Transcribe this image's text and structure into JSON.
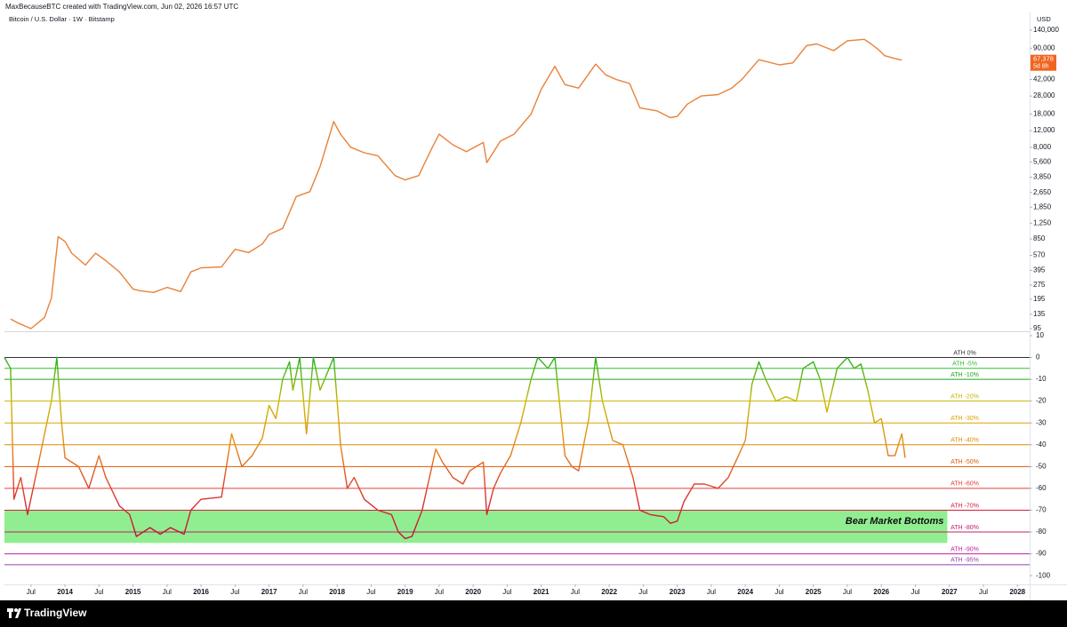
{
  "header": {
    "attribution": "MaxBecauseBTC created with TradingView.com, Jun 02, 2026 16:57 UTC"
  },
  "chart_data": [
    {
      "type": "line",
      "title": "Bitcoin / U.S. Dollar · 1W · Bitstamp",
      "currency": "USD",
      "log_scale": true,
      "xlim": [
        2013.11,
        2028.18
      ],
      "ylim": [
        91,
        216000
      ],
      "yticks": [
        {
          "value": 140000,
          "label": "140,000"
        },
        {
          "value": 90000,
          "label": "90,000"
        },
        {
          "value": 42000,
          "label": "42,000"
        },
        {
          "value": 28000,
          "label": "28,000"
        },
        {
          "value": 18000,
          "label": "18,000"
        },
        {
          "value": 12000,
          "label": "12,000"
        },
        {
          "value": 8000,
          "label": "8,000"
        },
        {
          "value": 5600,
          "label": "5,600"
        },
        {
          "value": 3850,
          "label": "3,850"
        },
        {
          "value": 2650,
          "label": "2,650"
        },
        {
          "value": 1850,
          "label": "1,850"
        },
        {
          "value": 1250,
          "label": "1,250"
        },
        850,
        570,
        395,
        275,
        195,
        135,
        95
      ],
      "last_price": {
        "value": 67378,
        "label": "67,378",
        "countdown": "5d 8h",
        "color": "#f0651e"
      },
      "series": [
        {
          "color": "#e8823a",
          "x": [
            2013.2,
            2013.3,
            2013.5,
            2013.7,
            2013.8,
            2013.9,
            2014.0,
            2014.1,
            2014.3,
            2014.45,
            2014.6,
            2014.8,
            2015.0,
            2015.1,
            2015.3,
            2015.5,
            2015.7,
            2015.85,
            2016.0,
            2016.3,
            2016.5,
            2016.7,
            2016.9,
            2017.0,
            2017.2,
            2017.4,
            2017.6,
            2017.75,
            2017.95,
            2018.05,
            2018.2,
            2018.4,
            2018.6,
            2018.85,
            2019.0,
            2019.2,
            2019.4,
            2019.5,
            2019.7,
            2019.9,
            2020.15,
            2020.2,
            2020.4,
            2020.6,
            2020.85,
            2021.0,
            2021.2,
            2021.35,
            2021.55,
            2021.8,
            2021.95,
            2022.1,
            2022.3,
            2022.45,
            2022.7,
            2022.9,
            2023.0,
            2023.15,
            2023.35,
            2023.6,
            2023.8,
            2023.95,
            2024.2,
            2024.5,
            2024.7,
            2024.9,
            2025.05,
            2025.3,
            2025.5,
            2025.75,
            2025.85,
            2025.95,
            2026.05,
            2026.2,
            2026.3
          ],
          "values": [
            120,
            110,
            95,
            125,
            200,
            900,
            800,
            600,
            450,
            600,
            500,
            380,
            250,
            240,
            230,
            260,
            235,
            380,
            420,
            430,
            660,
            610,
            750,
            950,
            1100,
            2400,
            2700,
            5000,
            15000,
            11000,
            8000,
            7000,
            6500,
            4000,
            3600,
            4000,
            8000,
            11000,
            8500,
            7200,
            9000,
            5500,
            9300,
            11000,
            18000,
            33000,
            58000,
            37000,
            34000,
            61000,
            47000,
            42000,
            38000,
            21000,
            19500,
            16500,
            17000,
            23000,
            28000,
            29000,
            34000,
            42000,
            68000,
            60000,
            63000,
            96000,
            100000,
            85000,
            108000,
            112000,
            100000,
            88000,
            75000,
            70000,
            67378
          ]
        }
      ]
    },
    {
      "type": "line",
      "xlim": [
        2013.11,
        2028.18
      ],
      "ylim": [
        -104,
        11.6
      ],
      "yticks": [
        10,
        0,
        -10,
        -20,
        -30,
        -40,
        -50,
        -60,
        -70,
        -80,
        -90,
        -100
      ],
      "xticks": [
        {
          "value": 2013.5,
          "label": "Jul"
        },
        2014,
        {
          "value": 2014.5,
          "label": "Jul"
        },
        2015,
        {
          "value": 2015.5,
          "label": "Jul"
        },
        2016,
        {
          "value": 2016.5,
          "label": "Jul"
        },
        2017,
        {
          "value": 2017.5,
          "label": "Jul"
        },
        2018,
        {
          "value": 2018.5,
          "label": "Jul"
        },
        2019,
        {
          "value": 2019.5,
          "label": "Jul"
        },
        2020,
        {
          "value": 2020.5,
          "label": "Jul"
        },
        2021,
        {
          "value": 2021.5,
          "label": "Jul"
        },
        2022,
        {
          "value": 2022.5,
          "label": "Jul"
        },
        2023,
        {
          "value": 2023.5,
          "label": "Jul"
        },
        2024,
        {
          "value": 2024.5,
          "label": "Jul"
        },
        2025,
        {
          "value": 2025.5,
          "label": "Jul"
        },
        2026,
        {
          "value": 2026.5,
          "label": "Jul"
        },
        2027,
        {
          "value": 2027.5,
          "label": "Jul"
        },
        2028
      ],
      "levels": [
        {
          "value": 0,
          "label": "ATH 0%",
          "color": "#333333"
        },
        {
          "value": -5,
          "label": "ATH -5%",
          "color": "#2fbf2f"
        },
        {
          "value": -10,
          "label": "ATH -10%",
          "color": "#1fa51f"
        },
        {
          "value": -20,
          "label": "ATH -20%",
          "color": "#c8b400"
        },
        {
          "value": -30,
          "label": "ATH -30%",
          "color": "#d7a500"
        },
        {
          "value": -40,
          "label": "ATH -40%",
          "color": "#e08a00"
        },
        {
          "value": -50,
          "label": "ATH -50%",
          "color": "#e05a00"
        },
        {
          "value": -60,
          "label": "ATH -60%",
          "color": "#e0403a"
        },
        {
          "value": -70,
          "label": "ATH -70%",
          "color": "#d0203a"
        },
        {
          "value": -80,
          "label": "ATH -80%",
          "color": "#c0206a"
        },
        {
          "value": -90,
          "label": "ATH -90%",
          "color": "#c020a0"
        },
        {
          "value": -95,
          "label": "ATH -95%",
          "color": "#9040b0"
        }
      ],
      "zone": {
        "text": "Bear Market Bottoms",
        "y_range": [
          -70,
          -85
        ],
        "x_range": [
          2013.11,
          2026.97
        ],
        "color": "#90ee90"
      },
      "gradient": [
        "#22b322",
        "#c9b800",
        "#e58a1a",
        "#e0402a",
        "#c8103a"
      ],
      "series": [
        {
          "x": [
            2013.11,
            2013.2,
            2013.25,
            2013.35,
            2013.45,
            2013.6,
            2013.8,
            2013.88,
            2013.95,
            2014.0,
            2014.2,
            2014.35,
            2014.5,
            2014.6,
            2014.8,
            2014.95,
            2015.05,
            2015.25,
            2015.4,
            2015.55,
            2015.75,
            2015.85,
            2016.0,
            2016.3,
            2016.45,
            2016.6,
            2016.75,
            2016.9,
            2017.0,
            2017.1,
            2017.2,
            2017.3,
            2017.35,
            2017.45,
            2017.55,
            2017.65,
            2017.75,
            2017.95,
            2018.05,
            2018.15,
            2018.25,
            2018.4,
            2018.6,
            2018.8,
            2018.9,
            2019.0,
            2019.1,
            2019.25,
            2019.45,
            2019.55,
            2019.7,
            2019.85,
            2019.95,
            2020.15,
            2020.2,
            2020.3,
            2020.4,
            2020.55,
            2020.7,
            2020.85,
            2020.95,
            2021.1,
            2021.2,
            2021.35,
            2021.45,
            2021.55,
            2021.7,
            2021.8,
            2021.9,
            2022.05,
            2022.2,
            2022.35,
            2022.45,
            2022.6,
            2022.8,
            2022.9,
            2023.0,
            2023.1,
            2023.25,
            2023.4,
            2023.6,
            2023.75,
            2023.9,
            2024.0,
            2024.1,
            2024.2,
            2024.3,
            2024.45,
            2024.6,
            2024.75,
            2024.85,
            2025.0,
            2025.1,
            2025.2,
            2025.35,
            2025.5,
            2025.6,
            2025.7,
            2025.8,
            2025.9,
            2026.0,
            2026.1,
            2026.2,
            2026.3,
            2026.35
          ],
          "values": [
            0,
            -5,
            -65,
            -55,
            -72,
            -50,
            -20,
            0,
            -30,
            -46,
            -50,
            -60,
            -45,
            -55,
            -68,
            -72,
            -82,
            -78,
            -81,
            -78,
            -81,
            -70,
            -65,
            -64,
            -35,
            -50,
            -45,
            -37,
            -22,
            -28,
            -10,
            -2,
            -15,
            0,
            -35,
            0,
            -15,
            0,
            -40,
            -60,
            -55,
            -65,
            -70,
            -72,
            -80,
            -83,
            -82,
            -70,
            -42,
            -48,
            -55,
            -58,
            -52,
            -48,
            -72,
            -60,
            -53,
            -45,
            -30,
            -10,
            0,
            -5,
            0,
            -45,
            -50,
            -52,
            -28,
            0,
            -20,
            -38,
            -40,
            -55,
            -70,
            -72,
            -73,
            -76,
            -75,
            -66,
            -58,
            -58,
            -60,
            -55,
            -45,
            -38,
            -12,
            -2,
            -10,
            -20,
            -18,
            -20,
            -5,
            -2,
            -10,
            -25,
            -5,
            0,
            -5,
            -3,
            -15,
            -30,
            -28,
            -45,
            -45,
            -35,
            -46
          ]
        }
      ]
    }
  ],
  "footer": {
    "brand": "TradingView"
  }
}
